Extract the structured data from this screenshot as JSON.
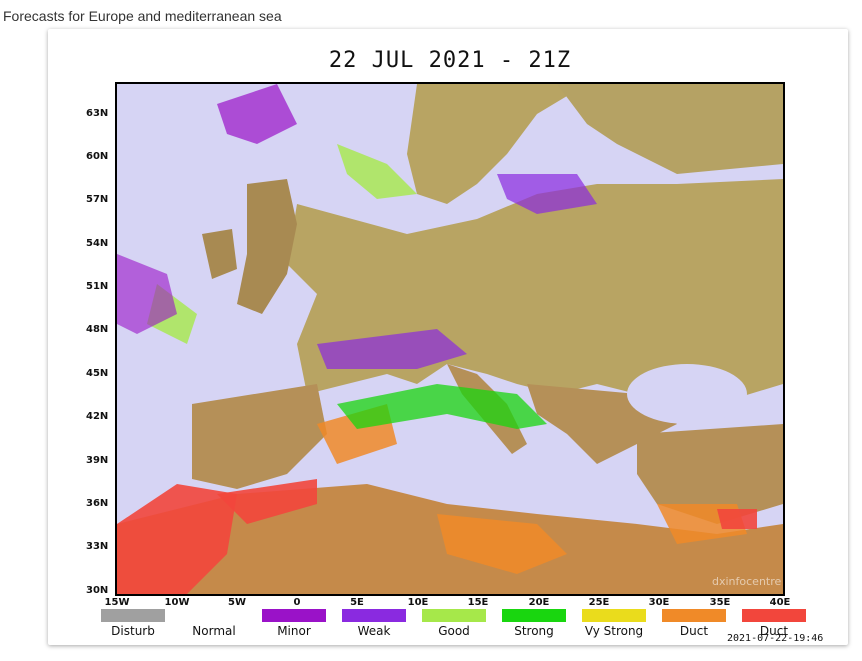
{
  "page": {
    "title": "Forecasts for Europe and mediterranean sea"
  },
  "map": {
    "title": "22 JUL 2021 - 21Z",
    "lat_labels": [
      "63N",
      "60N",
      "57N",
      "54N",
      "51N",
      "48N",
      "45N",
      "42N",
      "39N",
      "36N",
      "33N",
      "30N"
    ],
    "lon_labels": [
      "15W",
      "10W",
      "5W",
      "0",
      "5E",
      "10E",
      "15E",
      "20E",
      "25E",
      "30E",
      "35E",
      "40E"
    ],
    "watermark": "dxinfocentre",
    "timestamp": "2021-07-22-19:46"
  },
  "legend": [
    {
      "label": "Disturb",
      "color": "#a0a0a0"
    },
    {
      "label": "Normal",
      "color": "#ffffff"
    },
    {
      "label": "Minor",
      "color": "#9a12c8"
    },
    {
      "label": "Weak",
      "color": "#8a2ae0"
    },
    {
      "label": "Good",
      "color": "#a6e84a"
    },
    {
      "label": "Strong",
      "color": "#19d60f"
    },
    {
      "label": "Vy Strong",
      "color": "#eadc1c"
    },
    {
      "label": "Duct",
      "color": "#f08a28"
    },
    {
      "label": "Duct",
      "color": "#f2463c"
    }
  ],
  "colors": {
    "sea": "#d6d4f4",
    "land": "#b8a463",
    "land_dark": "#a88a52"
  }
}
